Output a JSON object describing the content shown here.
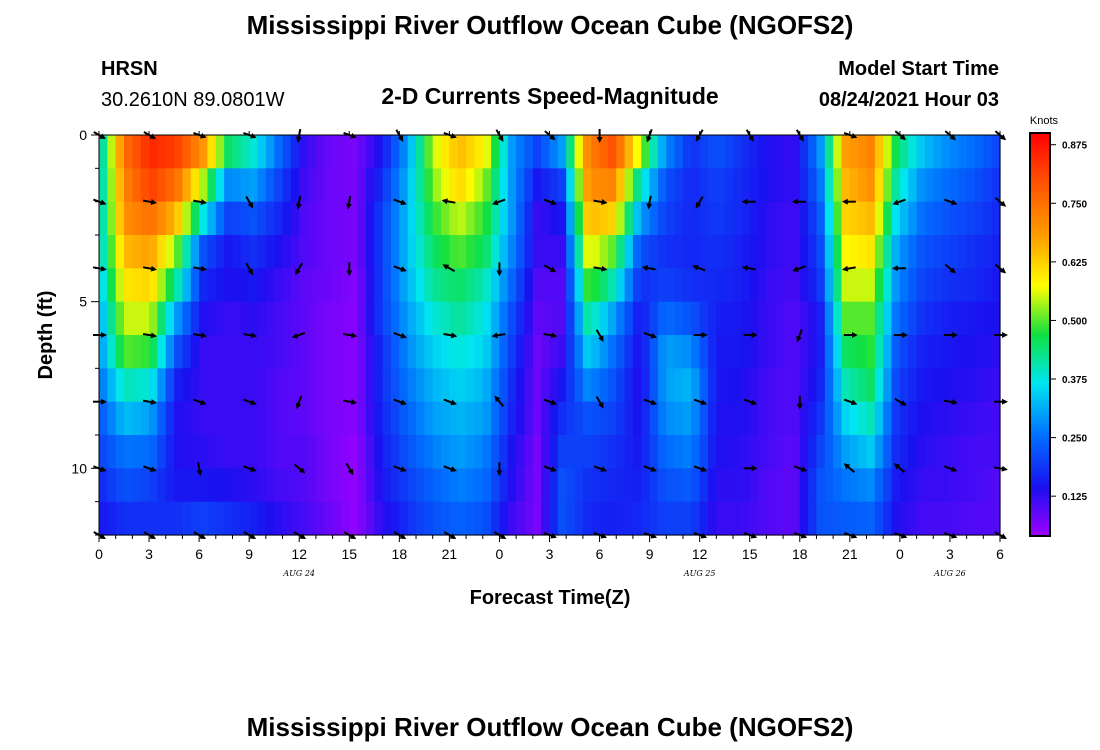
{
  "header": {
    "title": "Mississippi River Outflow Ocean Cube (NGOFS2)",
    "station": "HRSN",
    "coords": "30.2610N  89.0801W",
    "subtitle": "2-D Currents Speed-Magnitude",
    "model_label": "Model Start Time",
    "model_time": "08/24/2021 Hour 03"
  },
  "footer": {
    "title": "Mississippi River Outflow Ocean Cube (NGOFS2)"
  },
  "chart_data": {
    "type": "heatmap",
    "title": "2-D Currents Speed-Magnitude",
    "xlabel": "Forecast Time(Z)",
    "ylabel": "Depth (ft)",
    "x_tick_labels": [
      "0",
      "3",
      "6",
      "9",
      "12",
      "15",
      "18",
      "21",
      "0",
      "3",
      "6",
      "9",
      "12",
      "15",
      "18",
      "21",
      "0",
      "3",
      "6"
    ],
    "date_labels": [
      {
        "text": "AUG 24",
        "at_tick": 4
      },
      {
        "text": "AUG 25",
        "at_tick": 12
      },
      {
        "text": "AUG 26",
        "at_tick": 17
      }
    ],
    "y_tick_values": [
      0,
      5,
      10
    ],
    "ylim": [
      0,
      12
    ],
    "depths": [
      0.5,
      1.5,
      2.5,
      3.5,
      4.5,
      5.5,
      6.5,
      7.5,
      8.5,
      9.5,
      10.5,
      11.5
    ],
    "colorbar": {
      "unit": "Knots",
      "range": [
        0.04,
        0.9
      ],
      "ticks": [
        "0.875",
        "0.750",
        "0.625",
        "0.500",
        "0.375",
        "0.250",
        "0.125"
      ]
    },
    "speed_profiles": [
      [
        0.35,
        0.35,
        0.35,
        0.35,
        0.33,
        0.3,
        0.28,
        0.25,
        0.22,
        0.2,
        0.17,
        0.15
      ],
      [
        0.75,
        0.72,
        0.7,
        0.65,
        0.6,
        0.55,
        0.5,
        0.4,
        0.33,
        0.26,
        0.22,
        0.18
      ],
      [
        0.85,
        0.82,
        0.75,
        0.68,
        0.62,
        0.55,
        0.48,
        0.38,
        0.3,
        0.25,
        0.2,
        0.18
      ],
      [
        0.82,
        0.75,
        0.65,
        0.52,
        0.42,
        0.3,
        0.22,
        0.16,
        0.14,
        0.14,
        0.15,
        0.18
      ],
      [
        0.7,
        0.55,
        0.38,
        0.22,
        0.17,
        0.14,
        0.12,
        0.12,
        0.12,
        0.13,
        0.15,
        0.2
      ],
      [
        0.45,
        0.28,
        0.2,
        0.15,
        0.14,
        0.12,
        0.12,
        0.12,
        0.12,
        0.12,
        0.14,
        0.18
      ],
      [
        0.38,
        0.3,
        0.22,
        0.18,
        0.15,
        0.13,
        0.12,
        0.12,
        0.12,
        0.12,
        0.13,
        0.16
      ],
      [
        0.25,
        0.2,
        0.17,
        0.14,
        0.12,
        0.11,
        0.11,
        0.1,
        0.1,
        0.1,
        0.11,
        0.13
      ],
      [
        0.12,
        0.11,
        0.1,
        0.1,
        0.09,
        0.09,
        0.09,
        0.09,
        0.09,
        0.1,
        0.1,
        0.11
      ],
      [
        0.08,
        0.08,
        0.08,
        0.08,
        0.08,
        0.07,
        0.07,
        0.07,
        0.07,
        0.07,
        0.07,
        0.08
      ],
      [
        0.07,
        0.07,
        0.07,
        0.07,
        0.06,
        0.06,
        0.06,
        0.06,
        0.06,
        0.05,
        0.05,
        0.05
      ],
      [
        0.15,
        0.18,
        0.2,
        0.2,
        0.2,
        0.2,
        0.18,
        0.18,
        0.17,
        0.16,
        0.15,
        0.13
      ],
      [
        0.3,
        0.32,
        0.33,
        0.33,
        0.32,
        0.3,
        0.28,
        0.26,
        0.24,
        0.22,
        0.2,
        0.18
      ],
      [
        0.55,
        0.52,
        0.48,
        0.45,
        0.42,
        0.38,
        0.35,
        0.32,
        0.3,
        0.27,
        0.24,
        0.22
      ],
      [
        0.65,
        0.62,
        0.55,
        0.5,
        0.45,
        0.42,
        0.38,
        0.35,
        0.32,
        0.3,
        0.27,
        0.24
      ],
      [
        0.58,
        0.52,
        0.48,
        0.45,
        0.4,
        0.37,
        0.35,
        0.32,
        0.3,
        0.27,
        0.25,
        0.22
      ],
      [
        0.3,
        0.3,
        0.3,
        0.28,
        0.25,
        0.22,
        0.2,
        0.18,
        0.17,
        0.15,
        0.14,
        0.12
      ],
      [
        0.2,
        0.15,
        0.12,
        0.12,
        0.1,
        0.09,
        0.08,
        0.08,
        0.08,
        0.07,
        0.07,
        0.07
      ],
      [
        0.3,
        0.2,
        0.15,
        0.12,
        0.1,
        0.1,
        0.12,
        0.15,
        0.18,
        0.2,
        0.22,
        0.22
      ],
      [
        0.72,
        0.7,
        0.65,
        0.58,
        0.5,
        0.42,
        0.35,
        0.28,
        0.22,
        0.2,
        0.18,
        0.17
      ],
      [
        0.8,
        0.72,
        0.62,
        0.5,
        0.4,
        0.3,
        0.25,
        0.22,
        0.2,
        0.18,
        0.17,
        0.16
      ],
      [
        0.55,
        0.4,
        0.3,
        0.22,
        0.18,
        0.15,
        0.14,
        0.13,
        0.14,
        0.15,
        0.16,
        0.17
      ],
      [
        0.28,
        0.22,
        0.2,
        0.18,
        0.2,
        0.25,
        0.3,
        0.3,
        0.28,
        0.25,
        0.22,
        0.2
      ],
      [
        0.18,
        0.17,
        0.17,
        0.17,
        0.18,
        0.22,
        0.28,
        0.32,
        0.3,
        0.27,
        0.23,
        0.2
      ],
      [
        0.22,
        0.2,
        0.19,
        0.18,
        0.17,
        0.16,
        0.15,
        0.15,
        0.14,
        0.14,
        0.13,
        0.12
      ],
      [
        0.18,
        0.17,
        0.17,
        0.16,
        0.16,
        0.15,
        0.15,
        0.14,
        0.14,
        0.13,
        0.13,
        0.12
      ],
      [
        0.14,
        0.14,
        0.13,
        0.13,
        0.12,
        0.12,
        0.12,
        0.11,
        0.11,
        0.11,
        0.1,
        0.1
      ],
      [
        0.12,
        0.12,
        0.11,
        0.11,
        0.11,
        0.1,
        0.1,
        0.1,
        0.1,
        0.09,
        0.09,
        0.09
      ],
      [
        0.28,
        0.25,
        0.22,
        0.2,
        0.18,
        0.15,
        0.15,
        0.16,
        0.18,
        0.2,
        0.22,
        0.22
      ],
      [
        0.68,
        0.65,
        0.62,
        0.58,
        0.55,
        0.5,
        0.45,
        0.4,
        0.35,
        0.3,
        0.26,
        0.23
      ],
      [
        0.72,
        0.7,
        0.65,
        0.6,
        0.55,
        0.5,
        0.48,
        0.45,
        0.4,
        0.34,
        0.28,
        0.24
      ],
      [
        0.45,
        0.4,
        0.35,
        0.3,
        0.28,
        0.25,
        0.22,
        0.2,
        0.18,
        0.17,
        0.15,
        0.14
      ],
      [
        0.33,
        0.28,
        0.25,
        0.22,
        0.2,
        0.18,
        0.16,
        0.15,
        0.14,
        0.13,
        0.12,
        0.11
      ],
      [
        0.28,
        0.25,
        0.22,
        0.2,
        0.18,
        0.16,
        0.15,
        0.14,
        0.13,
        0.12,
        0.12,
        0.11
      ],
      [
        0.25,
        0.22,
        0.2,
        0.18,
        0.17,
        0.15,
        0.14,
        0.13,
        0.12,
        0.11,
        0.11,
        0.1
      ],
      [
        0.2,
        0.18,
        0.17,
        0.16,
        0.15,
        0.14,
        0.13,
        0.12,
        0.11,
        0.11,
        0.1,
        0.1
      ]
    ],
    "arrow_rows_depth": [
      0,
      2,
      4,
      6,
      8,
      10,
      12
    ],
    "arrow_cols_hour": [
      0,
      3,
      6,
      9,
      12,
      15,
      18,
      21,
      24,
      27,
      30,
      33,
      36,
      39,
      42,
      45,
      48,
      51,
      54
    ],
    "arrow_dirs_deg": [
      [
        30,
        30,
        20,
        20,
        100,
        20,
        60,
        20,
        60,
        40,
        90,
        110,
        120,
        60,
        60,
        20,
        40,
        40,
        40
      ],
      [
        20,
        10,
        10,
        60,
        100,
        100,
        20,
        190,
        160,
        20,
        10,
        100,
        120,
        180,
        180,
        180,
        160,
        20,
        40
      ],
      [
        10,
        10,
        10,
        60,
        120,
        90,
        20,
        210,
        90,
        30,
        10,
        190,
        200,
        190,
        160,
        170,
        180,
        40,
        40
      ],
      [
        0,
        10,
        10,
        10,
        160,
        10,
        20,
        10,
        170,
        10,
        60,
        20,
        0,
        0,
        110,
        0,
        0,
        0,
        0
      ],
      [
        0,
        10,
        20,
        20,
        110,
        10,
        20,
        20,
        230,
        20,
        60,
        20,
        20,
        20,
        90,
        20,
        30,
        10,
        0
      ],
      [
        20,
        20,
        80,
        20,
        40,
        60,
        20,
        20,
        90,
        20,
        20,
        20,
        20,
        0,
        20,
        220,
        220,
        20,
        10
      ],
      [
        30,
        30,
        30,
        30,
        30,
        30,
        30,
        30,
        30,
        20,
        20,
        20,
        20,
        20,
        20,
        20,
        20,
        20,
        30
      ]
    ]
  }
}
